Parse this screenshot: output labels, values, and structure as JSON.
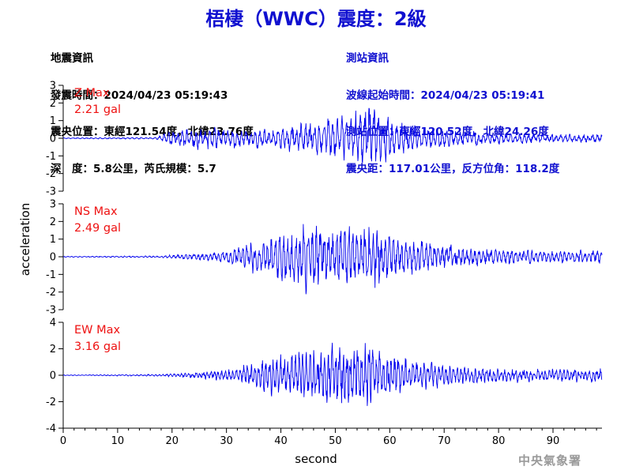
{
  "title": "梧棲（WWC）震度：2級",
  "quake_info": {
    "heading": "地震資訊",
    "origin_time": "發震時間：2024/04/23 05:19:43",
    "epicenter": "震央位置：東經121.54度，北緯23.76度",
    "depth_magnitude": "深　度：5.8公里，芮氏規模：5.7"
  },
  "station_info": {
    "heading": "測站資訊",
    "wave_start": "波線起始時間：2024/04/23 05:19:41",
    "location": "測站位置：東經120.52度，北緯24.26度",
    "distance": "震央距：117.01公里，反方位角：118.2度"
  },
  "watermark": "中央氣象署",
  "colors": {
    "trace": "#0000ee",
    "title": "#1010d0",
    "max_label": "#ee1111",
    "axis": "#000000"
  },
  "chart_data": {
    "type": "line",
    "xlabel": "second",
    "ylabel": "acceleration",
    "xlim": [
      0,
      99
    ],
    "xticks": [
      0,
      10,
      20,
      30,
      40,
      50,
      60,
      70,
      80,
      90
    ],
    "grid": false,
    "panels": [
      {
        "name": "Z",
        "max_label": "Z Max",
        "max_value": "2.21 gal",
        "ylim": [
          -3,
          3
        ],
        "yticks": [
          -3,
          -2,
          -1,
          0,
          1,
          2,
          3
        ],
        "envelope": {
          "t": [
            0,
            17,
            20,
            26,
            33,
            38,
            42,
            46,
            50,
            54,
            56,
            58,
            62,
            66,
            72,
            80,
            90,
            99
          ],
          "amp": [
            0.03,
            0.06,
            0.55,
            0.75,
            0.55,
            0.6,
            0.95,
            1.1,
            1.35,
            1.7,
            2.0,
            1.75,
            1.0,
            0.75,
            0.55,
            0.35,
            0.3,
            0.25
          ]
        }
      },
      {
        "name": "NS",
        "max_label": "NS Max",
        "max_value": "2.49 gal",
        "ylim": [
          -3,
          3
        ],
        "yticks": [
          -3,
          -2,
          -1,
          0,
          1,
          2,
          3
        ],
        "envelope": {
          "t": [
            0,
            18,
            22,
            28,
            33,
            36,
            40,
            45,
            50,
            55,
            57,
            60,
            64,
            70,
            80,
            90,
            99
          ],
          "amp": [
            0.03,
            0.06,
            0.15,
            0.3,
            0.7,
            1.2,
            1.6,
            2.2,
            1.9,
            2.0,
            2.2,
            1.5,
            1.1,
            0.75,
            0.5,
            0.35,
            0.5
          ]
        }
      },
      {
        "name": "EW",
        "max_label": "EW Max",
        "max_value": "3.16 gal",
        "ylim": [
          -4,
          4
        ],
        "yticks": [
          -4,
          -2,
          0,
          2,
          4
        ],
        "envelope": {
          "t": [
            0,
            18,
            24,
            30,
            34,
            38,
            42,
            46,
            50,
            54,
            58,
            62,
            66,
            70,
            80,
            90,
            99
          ],
          "amp": [
            0.03,
            0.08,
            0.25,
            0.5,
            1.0,
            1.6,
            2.0,
            2.5,
            2.6,
            3.0,
            2.2,
            1.6,
            1.2,
            0.9,
            0.6,
            0.5,
            0.7
          ]
        }
      }
    ]
  }
}
